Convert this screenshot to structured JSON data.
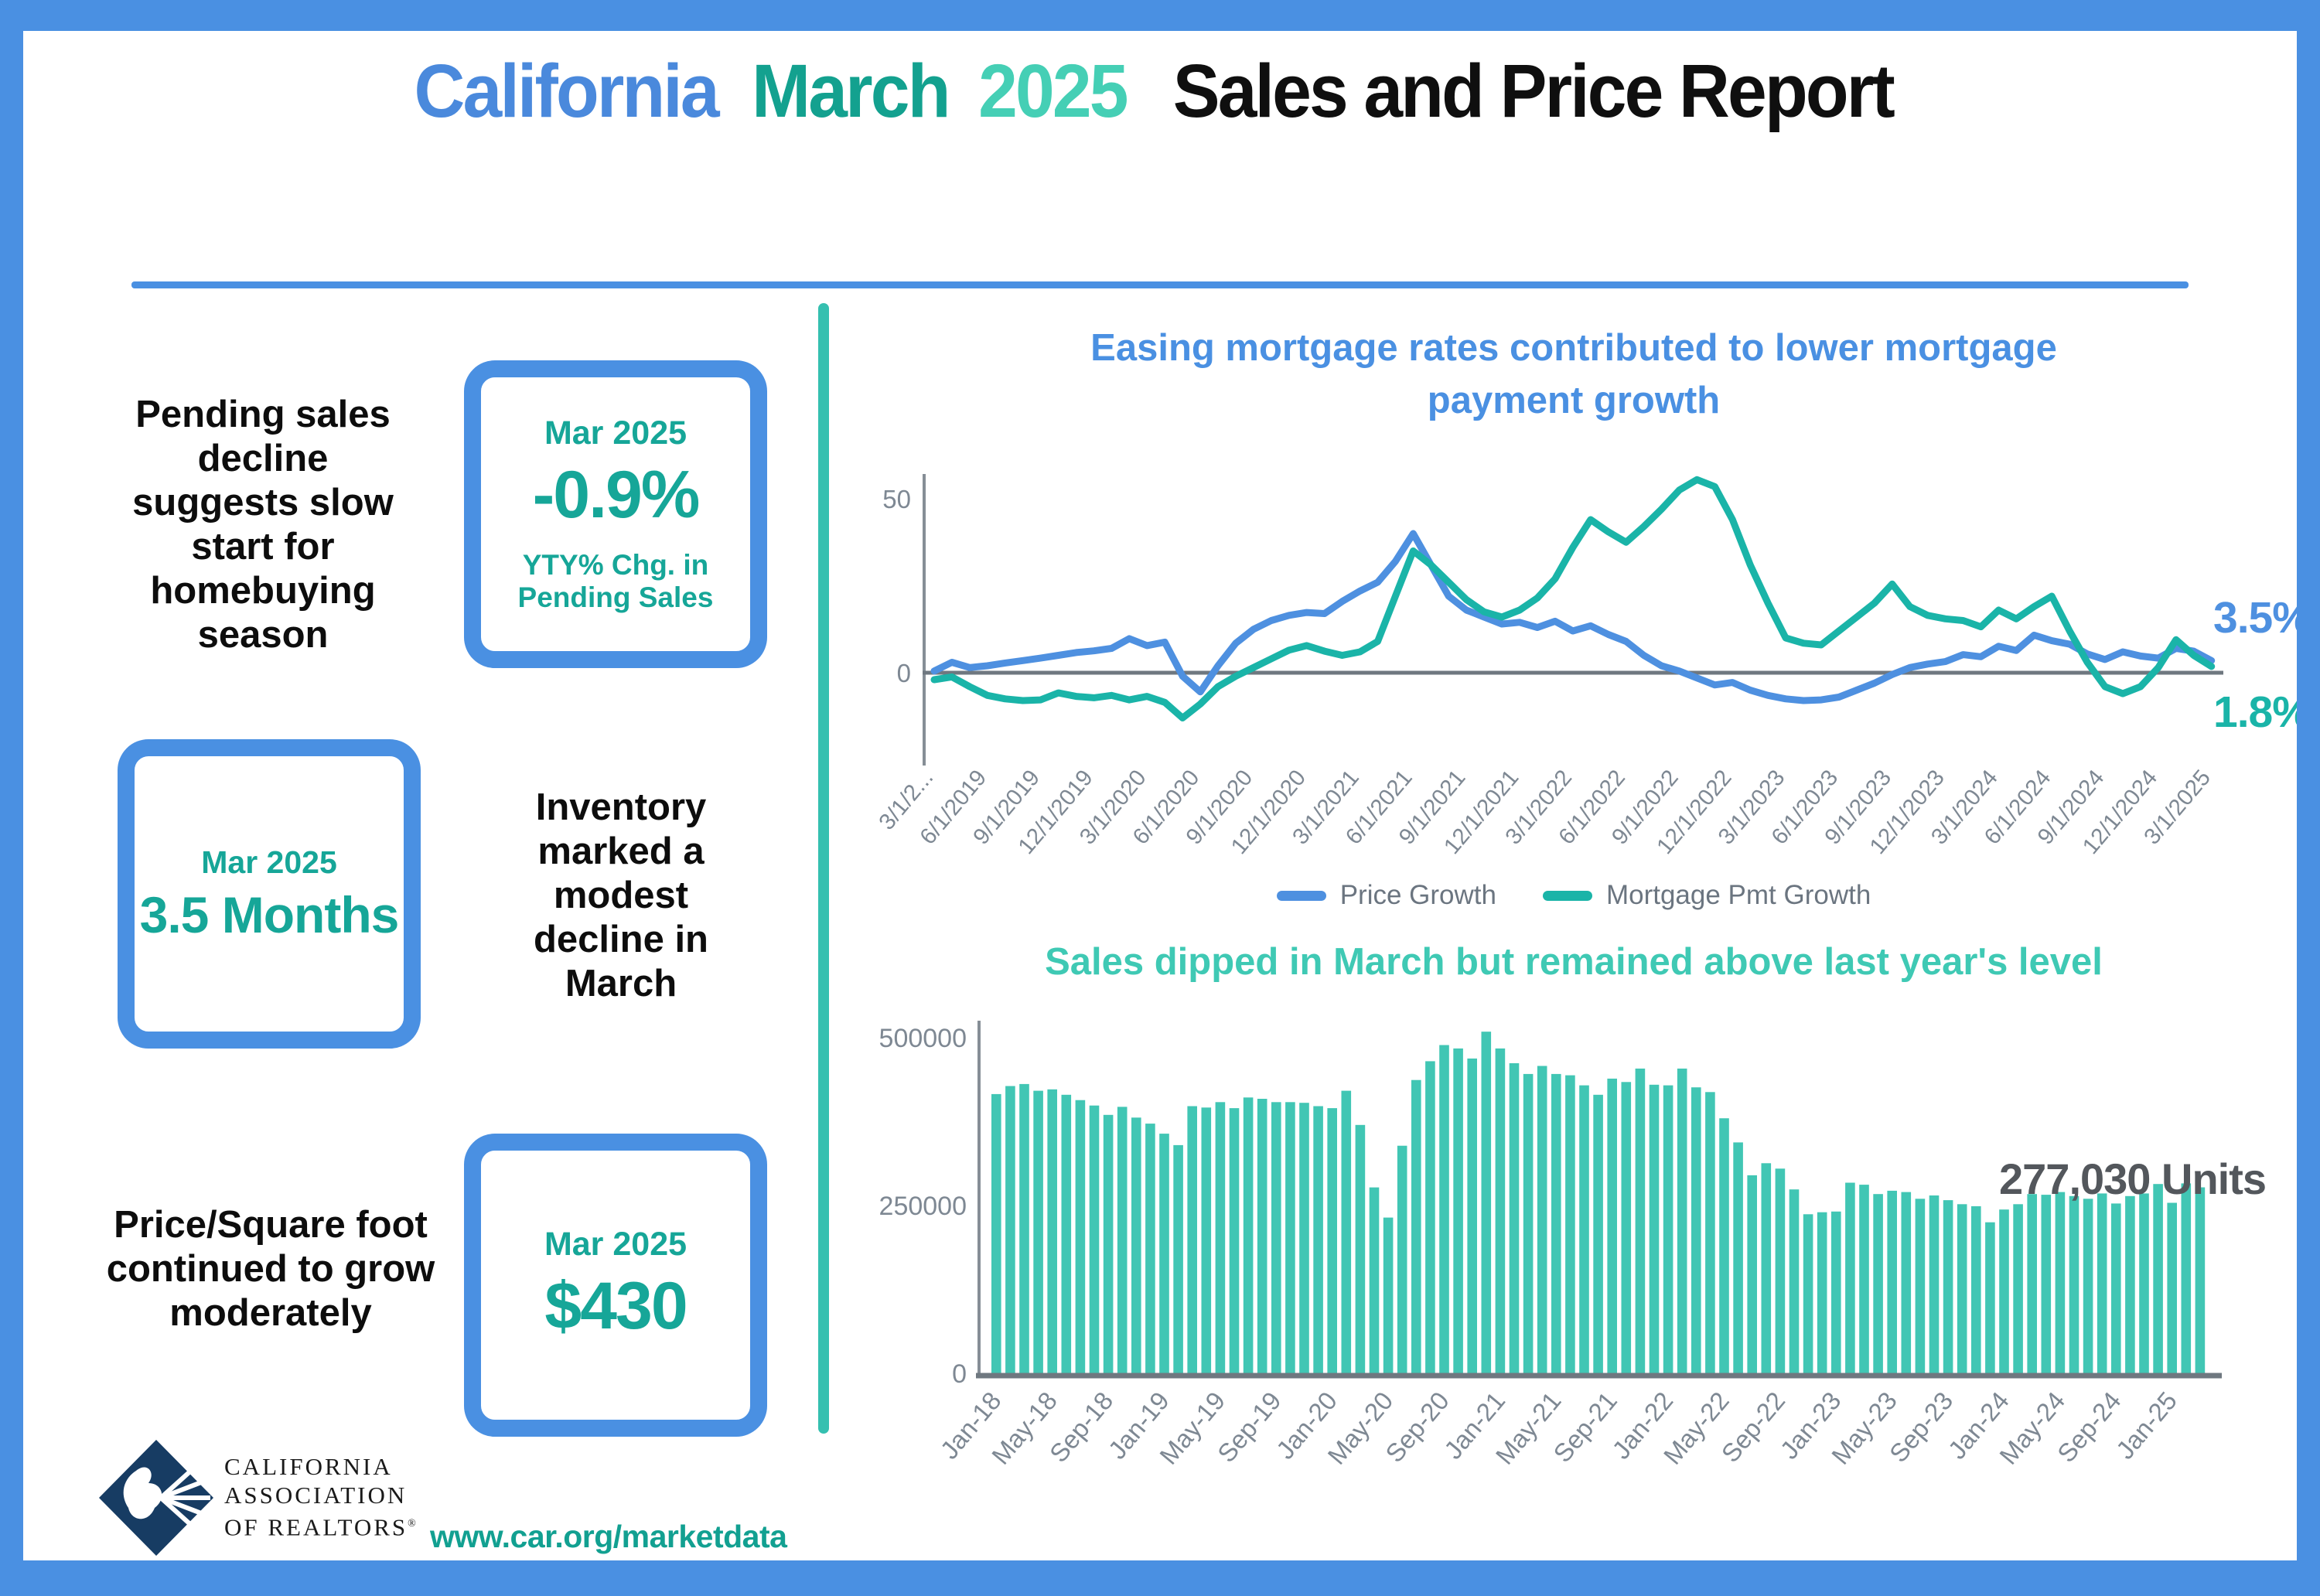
{
  "header": {
    "title_parts": [
      {
        "text": "California ",
        "color": "#4a89dc"
      },
      {
        "text": "March ",
        "color": "#13a18f"
      },
      {
        "text": "2025 ",
        "color": "#45cfb5"
      },
      {
        "text": "Sales and Price Report",
        "color": "#0f0f0f"
      }
    ]
  },
  "stats": [
    {
      "text": "Pending sales decline suggests slow start for homebuying season",
      "box": {
        "period": "Mar 2025",
        "value": "-0.9%",
        "caption": "YTY% Chg. in Pending Sales"
      }
    },
    {
      "text": "Inventory marked a modest decline in March",
      "box": {
        "period": "Mar 2025",
        "value": "3.5 Months"
      }
    },
    {
      "text": "Price/Square foot continued to grow moderately",
      "box": {
        "period": "Mar 2025",
        "value": "$430"
      }
    }
  ],
  "footer": {
    "logo_lines": [
      "CALIFORNIA",
      "ASSOCIATION",
      "OF REALTORS"
    ],
    "logo_registered_mark": "®",
    "website": "www.car.org/marketdata",
    "logo_color": "#173c63"
  },
  "chart_data": [
    {
      "type": "line",
      "title": "Easing mortgage rates contributed to lower mortgage payment growth",
      "ylim": [
        -20,
        60
      ],
      "ytick_labels": [
        "0",
        "50"
      ],
      "yticks": [
        0,
        50
      ],
      "grid": "zero-line-only",
      "legend_position": "bottom",
      "x_start": "3/1/2019",
      "x_end": "3/1/2025",
      "x_frequency": "monthly",
      "xtick_labels": [
        "3/1/2...",
        "6/1/2019",
        "9/1/2019",
        "12/1/2019",
        "3/1/2020",
        "6/1/2020",
        "9/1/2020",
        "12/1/2020",
        "3/1/2021",
        "6/1/2021",
        "9/1/2021",
        "12/1/2021",
        "3/1/2022",
        "6/1/2022",
        "9/1/2022",
        "12/1/2022",
        "3/1/2023",
        "6/1/2023",
        "9/1/2023",
        "12/1/2023",
        "3/1/2024",
        "6/1/2024",
        "9/1/2024",
        "12/1/2024",
        "3/1/2025"
      ],
      "end_labels": [
        "3.5%",
        "1.8%"
      ],
      "series": [
        {
          "name": "Price Growth",
          "color": "#4e90e0",
          "values": [
            0.5,
            3,
            1.5,
            2,
            2.8,
            3.5,
            4.2,
            5,
            5.8,
            6.3,
            7,
            9.8,
            7.8,
            8.8,
            -1,
            -5.5,
            2,
            8.5,
            12.5,
            15,
            16.5,
            17.3,
            17,
            20.5,
            23.5,
            26,
            32,
            40,
            31,
            22,
            18,
            16,
            14,
            14.5,
            13,
            14.8,
            12,
            13.5,
            11,
            9,
            5,
            2,
            0.5,
            -1.5,
            -3.5,
            -2.8,
            -5,
            -6.5,
            -7.5,
            -8,
            -7.8,
            -7,
            -5,
            -3,
            -0.5,
            1.5,
            2.5,
            3.2,
            5.2,
            4.6,
            7.6,
            6.4,
            10.8,
            9.2,
            8.2,
            5.4,
            3.8,
            6,
            4.8,
            4.2,
            7,
            6.2,
            3.5
          ],
          "end_value_label": "3.5%"
        },
        {
          "name": "Mortgage Pmt Growth",
          "color": "#1ab4a8",
          "values": [
            -2,
            -1.2,
            -4,
            -6.5,
            -7.5,
            -8,
            -7.8,
            -5.8,
            -6.8,
            -7.2,
            -6.5,
            -7.8,
            -6.8,
            -8.5,
            -13,
            -9,
            -4,
            -1,
            1.5,
            4,
            6.5,
            7.8,
            6.2,
            5,
            6,
            9,
            22,
            35,
            31,
            26,
            21,
            17.5,
            16,
            18,
            21.5,
            27,
            36,
            44,
            40.5,
            37.5,
            42,
            47,
            52.5,
            55.5,
            53.5,
            44,
            31,
            20,
            10,
            8.5,
            8,
            12,
            16,
            20,
            25.5,
            19,
            16.5,
            15.5,
            15,
            13.2,
            18,
            15.5,
            19,
            22,
            12,
            3,
            -4,
            -6,
            -4,
            1.5,
            9.5,
            5,
            1.8
          ],
          "end_value_label": "1.8%"
        }
      ]
    },
    {
      "type": "bar",
      "title": "Sales dipped in March but remained above last year's level",
      "bar_color": "#41c6b4",
      "ylim": [
        0,
        500000
      ],
      "yticks": [
        0,
        250000,
        500000
      ],
      "ytick_labels": [
        "0",
        "250000",
        "500000"
      ],
      "annotation": "277,030 Units",
      "x_start": "Jan-18",
      "x_end": "Mar-25",
      "x_frequency": "monthly",
      "xtick_labels": [
        "Jan-18",
        "May-18",
        "Sep-18",
        "Jan-19",
        "May-19",
        "Sep-19",
        "Jan-20",
        "May-20",
        "Sep-20",
        "Jan-21",
        "May-21",
        "Sep-21",
        "Jan-22",
        "May-22",
        "Sep-22",
        "Jan-23",
        "May-23",
        "Sep-23",
        "Jan-24",
        "May-24",
        "Sep-24",
        "Jan-25"
      ],
      "xtick_every_n_bars": 4,
      "values": [
        416000,
        428000,
        431000,
        421000,
        423000,
        415000,
        407000,
        399000,
        385000,
        397000,
        381000,
        372000,
        357000,
        340000,
        398000,
        396000,
        404000,
        395000,
        411000,
        409000,
        404000,
        404000,
        403000,
        398000,
        395000,
        421000,
        370000,
        277000,
        232000,
        339000,
        437000,
        465000,
        489000,
        484000,
        469000,
        509000,
        484000,
        462000,
        446000,
        458000,
        446000,
        444000,
        429000,
        415000,
        439000,
        434000,
        454000,
        430000,
        429000,
        454000,
        426000,
        419000,
        380000,
        344000,
        295000,
        313000,
        305000,
        274000,
        237000,
        240000,
        241000,
        284000,
        281000,
        267000,
        272000,
        270000,
        260000,
        265000,
        258000,
        252000,
        249000,
        225000,
        244000,
        252000,
        267000,
        266000,
        270000,
        264000,
        260000,
        268000,
        253000,
        264000,
        268000,
        282000,
        254000,
        283000,
        277030
      ]
    }
  ],
  "colors": {
    "frame_blue": "#4a90e2",
    "stat_teal": "#16a698",
    "divider_teal": "#35c0b0",
    "axis_gray": "#7e8893",
    "axis_line_gray": "#6f7880",
    "annotation_gray": "#53575c"
  }
}
